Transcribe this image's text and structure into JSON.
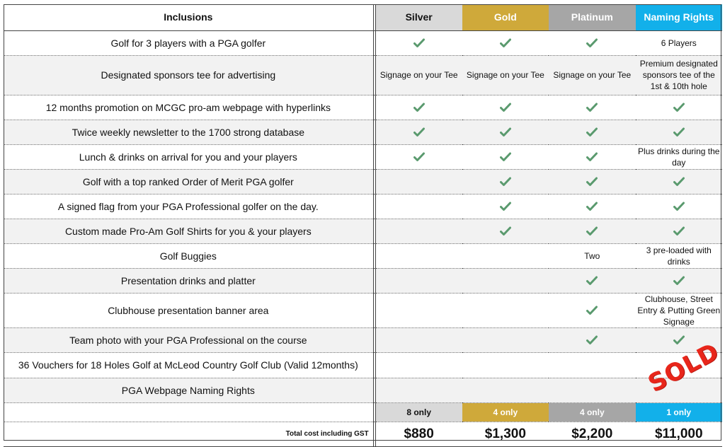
{
  "header": {
    "inclusions": "Inclusions",
    "tiers": [
      "Silver",
      "Gold",
      "Platinum",
      "Naming Rights"
    ]
  },
  "colors": {
    "silver": "#d9d9d9",
    "gold": "#cfa93a",
    "platinum": "#a6a6a6",
    "naming": "#12b0ea",
    "check": "#5a9a6e",
    "sold": "#e8261b"
  },
  "rows": [
    {
      "feature": "Golf for 3 players with a PGA golfer",
      "cells": [
        {
          "check": true
        },
        {
          "check": true
        },
        {
          "check": true
        },
        {
          "text": "6 Players"
        }
      ]
    },
    {
      "feature": "Designated sponsors tee for advertising",
      "cells": [
        {
          "text": "Signage on your Tee"
        },
        {
          "text": "Signage on your Tee"
        },
        {
          "text": "Signage on your Tee"
        },
        {
          "text": "Premium designated sponsors tee of the 1st & 10th hole"
        }
      ]
    },
    {
      "feature": "12 months promotion on MCGC pro-am webpage with hyperlinks",
      "cells": [
        {
          "check": true
        },
        {
          "check": true
        },
        {
          "check": true
        },
        {
          "check": true
        }
      ]
    },
    {
      "feature": "Twice weekly newsletter to the 1700 strong database",
      "cells": [
        {
          "check": true
        },
        {
          "check": true
        },
        {
          "check": true
        },
        {
          "check": true
        }
      ]
    },
    {
      "feature": "Lunch & drinks on arrival for you and your players",
      "cells": [
        {
          "check": true
        },
        {
          "check": true
        },
        {
          "check": true
        },
        {
          "text": "Plus drinks during the day"
        }
      ]
    },
    {
      "feature": "Golf with a top ranked Order of Merit PGA golfer",
      "cells": [
        {},
        {
          "check": true
        },
        {
          "check": true
        },
        {
          "check": true
        }
      ]
    },
    {
      "feature": "A signed flag from your PGA Professional golfer on the day.",
      "cells": [
        {},
        {
          "check": true
        },
        {
          "check": true
        },
        {
          "check": true
        }
      ]
    },
    {
      "feature": "Custom made Pro-Am Golf Shirts for you & your players",
      "cells": [
        {},
        {
          "check": true
        },
        {
          "check": true
        },
        {
          "check": true
        }
      ]
    },
    {
      "feature": "Golf Buggies",
      "cells": [
        {},
        {},
        {
          "text": "Two"
        },
        {
          "text": "3 pre-loaded with drinks"
        }
      ]
    },
    {
      "feature": "Presentation drinks and platter",
      "cells": [
        {},
        {},
        {
          "check": true
        },
        {
          "check": true
        }
      ]
    },
    {
      "feature": "Clubhouse presentation banner area",
      "cells": [
        {},
        {},
        {
          "check": true
        },
        {
          "text": "Clubhouse, Street Entry & Putting Green Signage"
        }
      ]
    },
    {
      "feature": "Team photo with your PGA Professional on the course",
      "cells": [
        {},
        {},
        {
          "check": true
        },
        {
          "check": true
        }
      ]
    },
    {
      "feature": "36 Vouchers for 18 Holes Golf at McLeod Country Golf Club (Valid 12months)",
      "cells": [
        {},
        {},
        {},
        {}
      ]
    },
    {
      "feature": "PGA Webpage Naming Rights",
      "cells": [
        {},
        {},
        {},
        {}
      ]
    }
  ],
  "availability": [
    "8 only",
    "4 only",
    "4 only",
    "1 only"
  ],
  "total": {
    "label": "Total cost including GST",
    "prices": [
      "$880",
      "$1,300",
      "$2,200",
      "$11,000"
    ]
  },
  "stamp": "SOLD"
}
